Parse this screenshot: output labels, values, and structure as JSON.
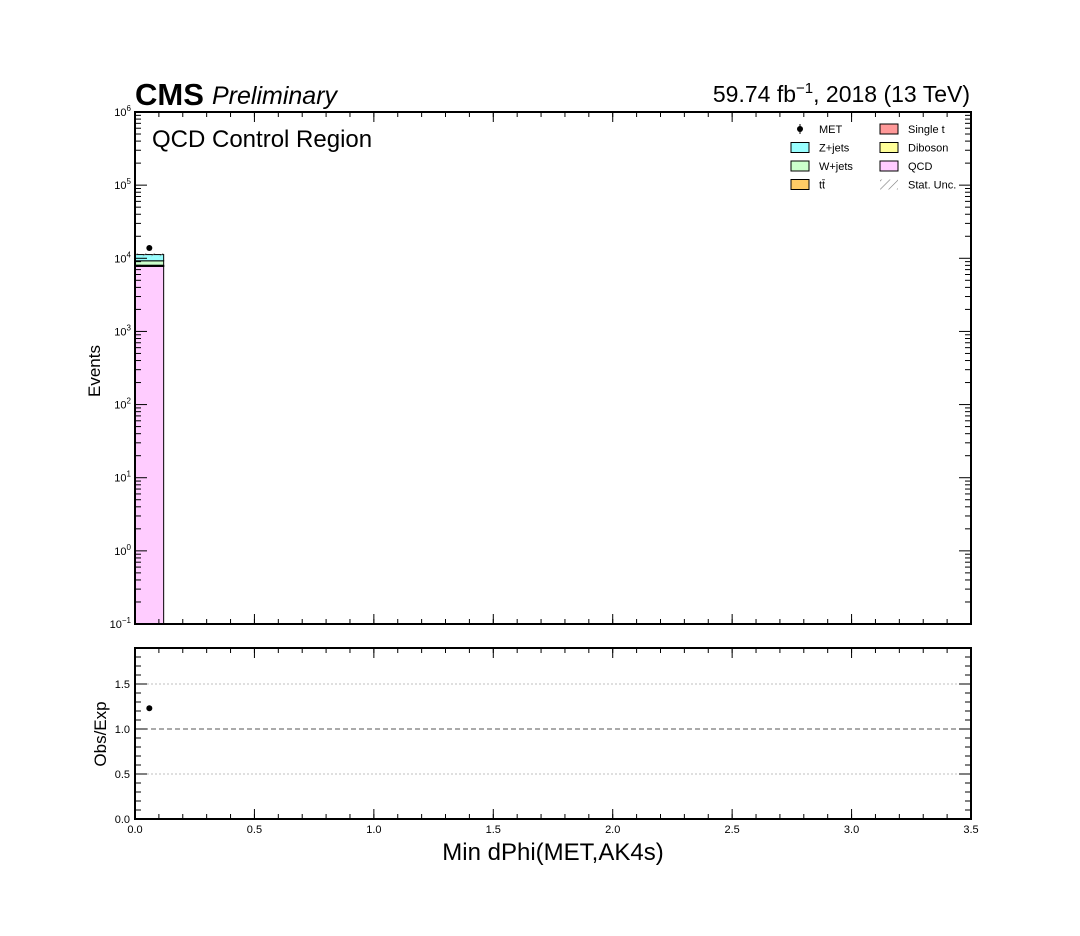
{
  "header": {
    "experiment": "CMS",
    "status": "Preliminary",
    "lumi_prefix": "59.74 fb",
    "lumi_exp": "−1",
    "lumi_suffix": ", 2018 (13 TeV)"
  },
  "chart_data": {
    "type": "bar",
    "stacked": true,
    "annotation": "QCD Control Region",
    "xlabel": "Min dPhi(MET,AK4s)",
    "ylabel": "Events",
    "ratio_ylabel": "Obs/Exp",
    "xlim": [
      0.0,
      3.5
    ],
    "ylim": [
      0.1,
      1000000
    ],
    "yscale": "log",
    "ratio_ylim": [
      0.0,
      1.9
    ],
    "bin_edges": [
      0.0,
      0.12
    ],
    "x_ticks": [
      "0.0",
      "0.5",
      "1.0",
      "1.5",
      "2.0",
      "2.5",
      "3.0",
      "3.5"
    ],
    "y_ticks": [
      {
        "base": "10",
        "exp": "−1",
        "value": 0.1
      },
      {
        "base": "10",
        "exp": "0",
        "value": 1
      },
      {
        "base": "10",
        "exp": "1",
        "value": 10
      },
      {
        "base": "10",
        "exp": "2",
        "value": 100
      },
      {
        "base": "10",
        "exp": "3",
        "value": 1000
      },
      {
        "base": "10",
        "exp": "4",
        "value": 10000
      },
      {
        "base": "10",
        "exp": "5",
        "value": 100000
      },
      {
        "base": "10",
        "exp": "6",
        "value": 1000000
      }
    ],
    "ratio_ticks": [
      "0.0",
      "0.5",
      "1.0",
      "1.5"
    ],
    "series": [
      {
        "name": "QCD",
        "color": "#ffccff",
        "values": [
          7800
        ]
      },
      {
        "name": "Single t",
        "color": "#ff9999",
        "values": [
          60
        ]
      },
      {
        "name": "Diboson",
        "color": "#ffff99",
        "values": [
          30
        ]
      },
      {
        "name": "tt̄",
        "color": "#ffcc66",
        "values": [
          150
        ]
      },
      {
        "name": "W+jets",
        "color": "#ccffcc",
        "values": [
          1200
        ]
      },
      {
        "name": "Z+jets",
        "color": "#99ffff",
        "values": [
          2000
        ]
      }
    ],
    "data": {
      "name": "MET",
      "x": [
        0.06
      ],
      "values": [
        13800
      ]
    },
    "ratio": {
      "x": [
        0.06
      ],
      "values": [
        1.23
      ]
    },
    "legend": {
      "position": "top-right",
      "entries": [
        {
          "label": "MET",
          "kind": "point",
          "color": "#000000"
        },
        {
          "label": "Single t",
          "kind": "box",
          "color": "#ff9999"
        },
        {
          "label": "Z+jets",
          "kind": "box",
          "color": "#99ffff"
        },
        {
          "label": "Diboson",
          "kind": "box",
          "color": "#ffff99"
        },
        {
          "label": "W+jets",
          "kind": "box",
          "color": "#ccffcc"
        },
        {
          "label": "QCD",
          "kind": "box",
          "color": "#ffccff"
        },
        {
          "label": "tt̄",
          "kind": "box",
          "color": "#ffcc66"
        },
        {
          "label": "Stat. Unc.",
          "kind": "hatch",
          "color": "#808080"
        }
      ]
    }
  }
}
